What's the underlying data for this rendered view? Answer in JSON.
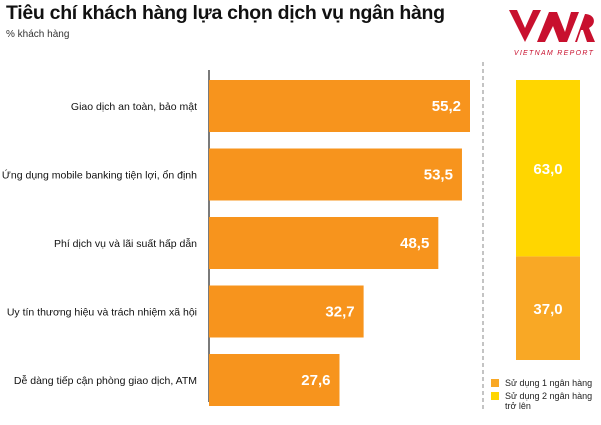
{
  "header": {
    "title": "Tiêu chí khách hàng lựa chọn dịch vụ ngân hàng",
    "subtitle": "% khách hàng"
  },
  "logo": {
    "text": "VIETNAM REPORT",
    "color": "#c8102e"
  },
  "colors": {
    "bar": "#f7941d",
    "stack_one_bank": "#f9a825",
    "stack_two_banks": "#ffd600",
    "axis": "#222222",
    "divider": "#888888"
  },
  "chart_data": [
    {
      "type": "bar",
      "orientation": "horizontal",
      "categories": [
        "Giao dịch an toàn, bảo mật",
        "Ứng dụng mobile banking tiện lợi, ổn định",
        "Phí dịch vụ và lãi suất hấp dẫn",
        "Uy tín thương hiệu và trách nhiệm xã hội",
        "Dễ dàng tiếp cận phòng giao dịch, ATM"
      ],
      "values": [
        55.2,
        53.5,
        48.5,
        32.7,
        27.6
      ],
      "value_labels": [
        "55,2",
        "53,5",
        "48,5",
        "32,7",
        "27,6"
      ],
      "xlim": [
        0,
        60
      ],
      "grid": false
    },
    {
      "type": "bar",
      "stacked": true,
      "series": [
        {
          "name": "Sử dụng 1 ngân hàng",
          "values": [
            37.0
          ],
          "label": "37,0"
        },
        {
          "name": "Sử dụng 2 ngân hàng trở lên",
          "values": [
            63.0
          ],
          "label": "63,0"
        }
      ],
      "ylim": [
        0,
        100
      ],
      "legend": "bottom-right"
    }
  ]
}
